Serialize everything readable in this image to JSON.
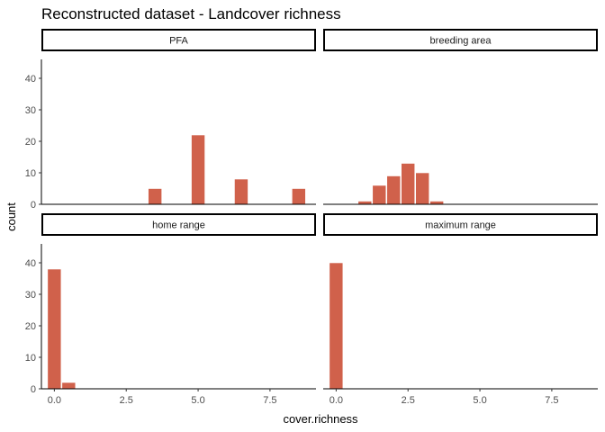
{
  "chart_data": {
    "type": "bar",
    "title": "Reconstructed dataset - Landcover richness",
    "xlabel": "cover.richness",
    "ylabel": "count",
    "xlim": [
      -0.45,
      9.1
    ],
    "ylim": [
      0,
      46
    ],
    "x_ticks": [
      "0.0",
      "2.5",
      "5.0",
      "7.5"
    ],
    "x_tick_values": [
      0,
      2.5,
      5,
      7.5
    ],
    "y_ticks": [
      "0",
      "10",
      "20",
      "30",
      "40"
    ],
    "y_tick_values": [
      0,
      10,
      20,
      30,
      40
    ],
    "bin_width": 0.47,
    "bar_color": "#D0614B",
    "bar_outline": "#ffffff",
    "grid": false,
    "panels": [
      {
        "name": "PFA",
        "bars": [
          {
            "x": 3.5,
            "count": 5
          },
          {
            "x": 5.0,
            "count": 22
          },
          {
            "x": 6.5,
            "count": 8
          },
          {
            "x": 8.5,
            "count": 5
          }
        ]
      },
      {
        "name": "breeding area",
        "bars": [
          {
            "x": 1.0,
            "count": 1
          },
          {
            "x": 1.5,
            "count": 6
          },
          {
            "x": 2.0,
            "count": 9
          },
          {
            "x": 2.5,
            "count": 13
          },
          {
            "x": 3.0,
            "count": 10
          },
          {
            "x": 3.5,
            "count": 1
          }
        ]
      },
      {
        "name": "home range",
        "bars": [
          {
            "x": 0.0,
            "count": 38
          },
          {
            "x": 0.5,
            "count": 2
          }
        ]
      },
      {
        "name": "maximum range",
        "bars": [
          {
            "x": 0.0,
            "count": 40
          }
        ]
      }
    ]
  }
}
